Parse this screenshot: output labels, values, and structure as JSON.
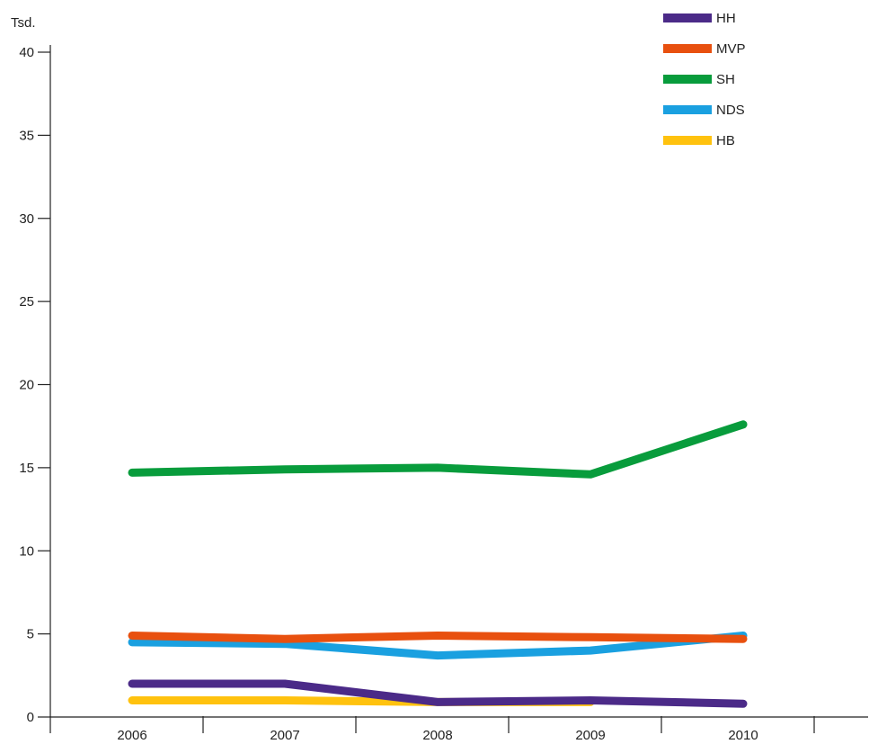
{
  "chart_data": {
    "type": "line",
    "ylabel": "Tsd.",
    "categories": [
      "2006",
      "2007",
      "2008",
      "2009",
      "2010"
    ],
    "ylim": [
      0,
      40
    ],
    "yticks": [
      0,
      5,
      10,
      15,
      20,
      25,
      30,
      35,
      40
    ],
    "grid": false,
    "legend_position": "top-right",
    "series": [
      {
        "name": "HH",
        "color": "#4b2a88",
        "values": [
          2.0,
          2.0,
          0.9,
          1.0,
          0.8
        ]
      },
      {
        "name": "MVP",
        "color": "#e8500f",
        "values": [
          4.9,
          4.7,
          4.9,
          4.8,
          4.7
        ]
      },
      {
        "name": "SH",
        "color": "#089c3c",
        "values": [
          14.7,
          14.9,
          15.0,
          14.6,
          17.6
        ]
      },
      {
        "name": "NDS",
        "color": "#1aa0e0",
        "values": [
          4.5,
          4.4,
          3.7,
          4.0,
          4.9
        ]
      },
      {
        "name": "HB",
        "color": "#ffc20e",
        "values": [
          1.0,
          1.0,
          0.9,
          0.9,
          null
        ]
      }
    ]
  }
}
